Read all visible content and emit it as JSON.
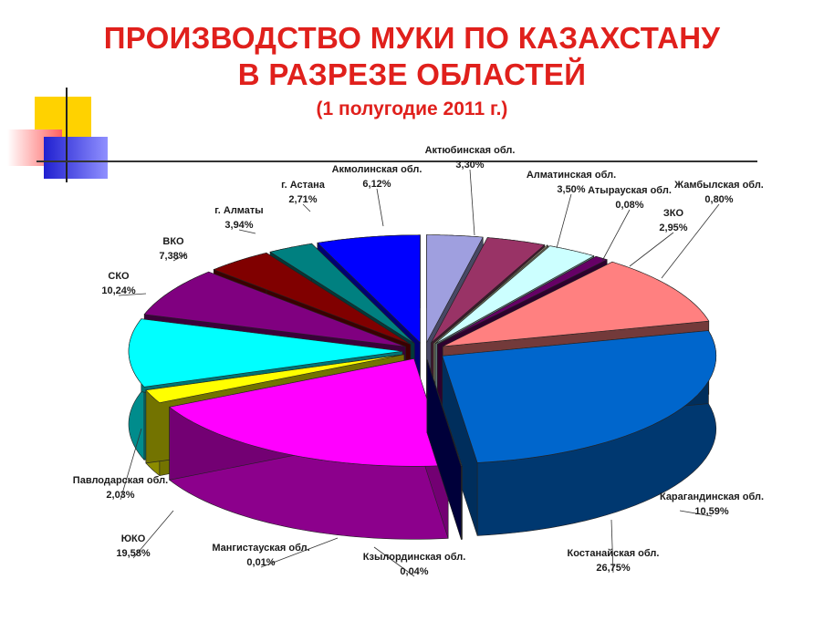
{
  "title_line1": "ПРОИЗВОДСТВО МУКИ ПО КАЗАХСТАНУ",
  "title_line2": "В РАЗРЕЗЕ ОБЛАСТЕЙ",
  "subtitle": "(1 полугодие 2011 г.)",
  "chart_data": {
    "type": "pie",
    "style": "3d-exploded",
    "title": "ПРОИЗВОДСТВО МУКИ ПО КАЗАХСТАНУ В РАЗРЕЗЕ ОБЛАСТЕЙ",
    "subtitle": "(1 полугодие 2011 г.)",
    "slices": [
      {
        "name": "Актюбинская обл.",
        "value": 3.3,
        "label": "3,30%",
        "color": "#9f9fdf"
      },
      {
        "name": "Алматинская обл.",
        "value": 3.5,
        "label": "3,50%",
        "color": "#993366"
      },
      {
        "name": "Атырауская обл.",
        "value": 0.08,
        "label": "0,08%",
        "color": "#ffffcc"
      },
      {
        "name": "ЗКО",
        "value": 2.95,
        "label": "2,95%",
        "color": "#ccffff"
      },
      {
        "name": "Жамбылская обл.",
        "value": 0.8,
        "label": "0,80%",
        "color": "#660066"
      },
      {
        "name": "Карагандинская обл.",
        "value": 10.59,
        "label": "10,59%",
        "color": "#ff8080"
      },
      {
        "name": "Костанайская обл.",
        "value": 26.75,
        "label": "26,75%",
        "color": "#0066cc"
      },
      {
        "name": "Кзылординская обл.",
        "value": 0.04,
        "label": "0,04%",
        "color": "#ccccff"
      },
      {
        "name": "Мангистауская обл.",
        "value": 0.01,
        "label": "0,01%",
        "color": "#000080"
      },
      {
        "name": "ЮКО",
        "value": 19.58,
        "label": "19,58%",
        "color": "#ff00ff"
      },
      {
        "name": "Павлодарская обл.",
        "value": 2.03,
        "label": "2,03%",
        "color": "#ffff00"
      },
      {
        "name": "СКО",
        "value": 10.24,
        "label": "10,24%",
        "color": "#00ffff"
      },
      {
        "name": "ВКО",
        "value": 7.38,
        "label": "7,38%",
        "color": "#800080"
      },
      {
        "name": "г. Алматы",
        "value": 3.94,
        "label": "3,94%",
        "color": "#800000"
      },
      {
        "name": "г. Астана",
        "value": 2.71,
        "label": "2,71%",
        "color": "#008080"
      },
      {
        "name": "Акмолинская обл.",
        "value": 6.12,
        "label": "6,12%",
        "color": "#0000ff"
      }
    ]
  }
}
